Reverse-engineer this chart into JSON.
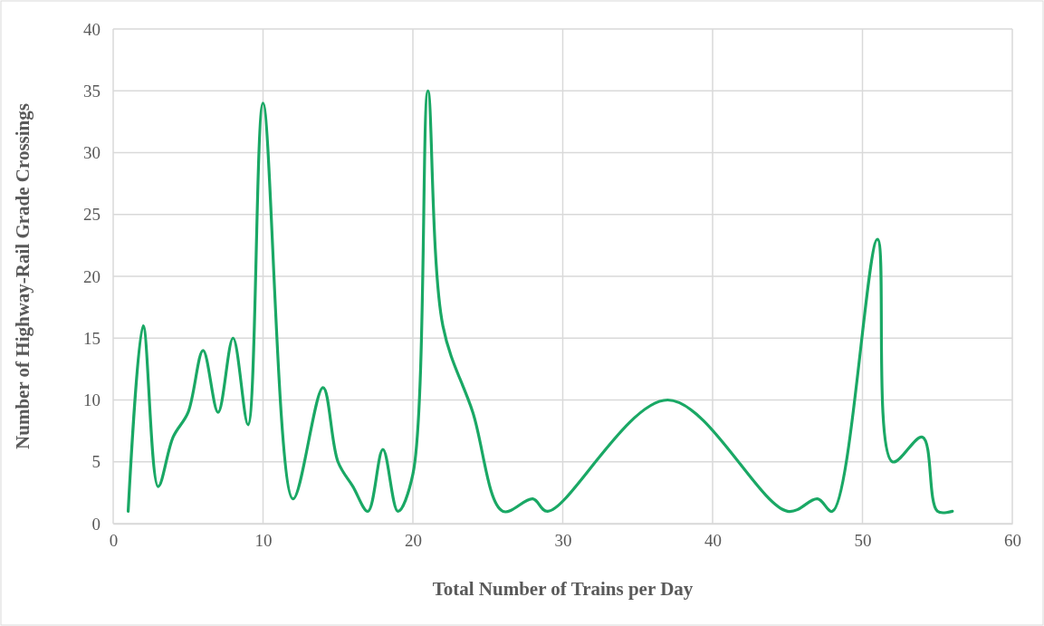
{
  "chart_data": {
    "type": "line",
    "xlabel": "Total Number of Trains per Day",
    "ylabel": "Number of Highway-Rail Grade Crossings",
    "xlim": [
      0,
      60
    ],
    "xticks": [
      0,
      10,
      20,
      30,
      40,
      50,
      60
    ],
    "ylim": [
      0,
      40
    ],
    "yticks": [
      0,
      5,
      10,
      15,
      20,
      25,
      30,
      35,
      40
    ],
    "grid": true,
    "marker": "none",
    "line_style": "solid",
    "series": [
      {
        "color": "#1aa865",
        "x": [
          1,
          2,
          3,
          4,
          5,
          6,
          7,
          8,
          9,
          10,
          12,
          14,
          15,
          16,
          17,
          18,
          19,
          20,
          21,
          22,
          24,
          26,
          28,
          29,
          37,
          45,
          47,
          48,
          51,
          52,
          54,
          55,
          56
        ],
        "values": [
          1,
          16,
          3,
          7,
          9,
          14,
          9,
          15,
          8,
          34,
          2,
          11,
          5,
          3,
          1,
          6,
          1,
          4,
          35,
          16,
          9,
          1,
          2,
          1,
          10,
          1,
          2,
          1,
          23,
          5,
          7,
          1,
          1
        ]
      }
    ]
  }
}
